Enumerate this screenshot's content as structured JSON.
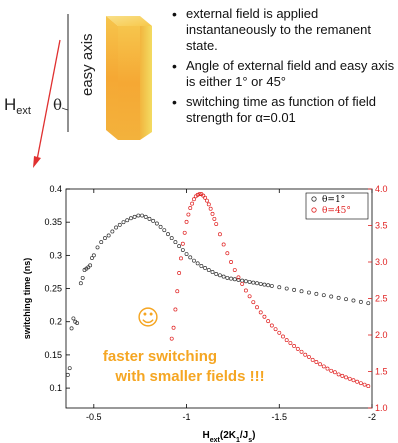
{
  "diagram": {
    "field_label": "H",
    "field_sub": "ext",
    "angle_symbol": "θ",
    "easy_axis_label": "easy axis",
    "colors": {
      "arrow": "#e03030",
      "block_top": "#f7c84a",
      "block_front": "#f5a833",
      "block_side": "#f1d25a"
    }
  },
  "bullets": [
    "external field is applied instantaneously to the remanent state.",
    "Angle of external field and easy axis is either 1° or 45°",
    "switching time as function of field strength for α=0.01"
  ],
  "chart_data": {
    "type": "scatter",
    "xlabel": "H",
    "xlabel_sub": "ext",
    "xlabel_tail": "(2K",
    "xlabel_sub2": "1",
    "xlabel_tail2": "/J",
    "xlabel_sub3": "s",
    "xlabel_end": ")",
    "ylabel": "switching time (ns)",
    "xlim": [
      -0.35,
      -2.0
    ],
    "ylim_left": [
      0.07,
      0.4
    ],
    "ylim_right": [
      1.0,
      4.0
    ],
    "x_ticks": [
      -0.5,
      -1,
      -1.5,
      -2
    ],
    "x_tick_labels": [
      "-0.5",
      "-1",
      "-1.5",
      "-2"
    ],
    "y_ticks_left": [
      0.1,
      0.15,
      0.2,
      0.25,
      0.3,
      0.35,
      0.4
    ],
    "y_tick_labels_left": [
      "0.1",
      "0.15",
      "0.2",
      "0.25",
      "0.3",
      "0.35",
      "0.4"
    ],
    "y_ticks_right": [
      1.0,
      1.5,
      2.0,
      2.5,
      3.0,
      3.5,
      4.0
    ],
    "y_tick_labels_right": [
      "1.0",
      "1.5",
      "2.0",
      "2.5",
      "3.0",
      "3.5",
      "4.0"
    ],
    "legend_position": "top-right",
    "series": [
      {
        "name": "θ=1°",
        "axis": "left",
        "color": "#333333",
        "marker": "open-circle",
        "points": [
          [
            -0.36,
            0.12
          ],
          [
            -0.37,
            0.13
          ],
          [
            -0.38,
            0.19
          ],
          [
            -0.39,
            0.205
          ],
          [
            -0.4,
            0.2
          ],
          [
            -0.41,
            0.198
          ],
          [
            -0.43,
            0.258
          ],
          [
            -0.44,
            0.266
          ],
          [
            -0.45,
            0.278
          ],
          [
            -0.46,
            0.28
          ],
          [
            -0.47,
            0.282
          ],
          [
            -0.48,
            0.285
          ],
          [
            -0.49,
            0.296
          ],
          [
            -0.5,
            0.3
          ],
          [
            -0.52,
            0.312
          ],
          [
            -0.54,
            0.32
          ],
          [
            -0.56,
            0.326
          ],
          [
            -0.58,
            0.33
          ],
          [
            -0.6,
            0.336
          ],
          [
            -0.62,
            0.342
          ],
          [
            -0.64,
            0.346
          ],
          [
            -0.66,
            0.35
          ],
          [
            -0.68,
            0.353
          ],
          [
            -0.7,
            0.356
          ],
          [
            -0.72,
            0.358
          ],
          [
            -0.74,
            0.36
          ],
          [
            -0.76,
            0.36
          ],
          [
            -0.78,
            0.358
          ],
          [
            -0.8,
            0.355
          ],
          [
            -0.82,
            0.352
          ],
          [
            -0.84,
            0.348
          ],
          [
            -0.86,
            0.343
          ],
          [
            -0.88,
            0.338
          ],
          [
            -0.9,
            0.332
          ],
          [
            -0.92,
            0.326
          ],
          [
            -0.94,
            0.32
          ],
          [
            -0.96,
            0.314
          ],
          [
            -0.98,
            0.308
          ],
          [
            -1.0,
            0.302
          ],
          [
            -1.02,
            0.297
          ],
          [
            -1.04,
            0.292
          ],
          [
            -1.06,
            0.288
          ],
          [
            -1.08,
            0.284
          ],
          [
            -1.1,
            0.281
          ],
          [
            -1.12,
            0.278
          ],
          [
            -1.14,
            0.275
          ],
          [
            -1.16,
            0.272
          ],
          [
            -1.18,
            0.27
          ],
          [
            -1.2,
            0.268
          ],
          [
            -1.22,
            0.266
          ],
          [
            -1.24,
            0.265
          ],
          [
            -1.26,
            0.264
          ],
          [
            -1.28,
            0.263
          ],
          [
            -1.3,
            0.262
          ],
          [
            -1.32,
            0.261
          ],
          [
            -1.34,
            0.26
          ],
          [
            -1.36,
            0.259
          ],
          [
            -1.38,
            0.258
          ],
          [
            -1.4,
            0.257
          ],
          [
            -1.42,
            0.256
          ],
          [
            -1.44,
            0.255
          ],
          [
            -1.46,
            0.254
          ],
          [
            -1.5,
            0.252
          ],
          [
            -1.54,
            0.25
          ],
          [
            -1.58,
            0.248
          ],
          [
            -1.62,
            0.246
          ],
          [
            -1.66,
            0.244
          ],
          [
            -1.7,
            0.242
          ],
          [
            -1.74,
            0.24
          ],
          [
            -1.78,
            0.238
          ],
          [
            -1.82,
            0.236
          ],
          [
            -1.86,
            0.234
          ],
          [
            -1.9,
            0.232
          ],
          [
            -1.94,
            0.23
          ],
          [
            -1.98,
            0.228
          ]
        ]
      },
      {
        "name": "θ=45°",
        "axis": "right",
        "color": "#e02020",
        "marker": "open-circle",
        "points": [
          [
            -0.92,
            1.95
          ],
          [
            -0.93,
            2.1
          ],
          [
            -0.94,
            2.35
          ],
          [
            -0.95,
            2.6
          ],
          [
            -0.96,
            2.85
          ],
          [
            -0.97,
            3.05
          ],
          [
            -0.98,
            3.25
          ],
          [
            -0.99,
            3.4
          ],
          [
            -1.0,
            3.55
          ],
          [
            -1.01,
            3.65
          ],
          [
            -1.02,
            3.74
          ],
          [
            -1.03,
            3.8
          ],
          [
            -1.04,
            3.86
          ],
          [
            -1.05,
            3.9
          ],
          [
            -1.06,
            3.92
          ],
          [
            -1.07,
            3.93
          ],
          [
            -1.08,
            3.93
          ],
          [
            -1.09,
            3.91
          ],
          [
            -1.1,
            3.88
          ],
          [
            -1.11,
            3.84
          ],
          [
            -1.12,
            3.79
          ],
          [
            -1.13,
            3.73
          ],
          [
            -1.14,
            3.66
          ],
          [
            -1.15,
            3.59
          ],
          [
            -1.16,
            3.52
          ],
          [
            -1.18,
            3.38
          ],
          [
            -1.2,
            3.24
          ],
          [
            -1.22,
            3.12
          ],
          [
            -1.24,
            3.0
          ],
          [
            -1.26,
            2.89
          ],
          [
            -1.28,
            2.79
          ],
          [
            -1.3,
            2.7
          ],
          [
            -1.32,
            2.61
          ],
          [
            -1.34,
            2.53
          ],
          [
            -1.36,
            2.45
          ],
          [
            -1.38,
            2.38
          ],
          [
            -1.4,
            2.31
          ],
          [
            -1.42,
            2.25
          ],
          [
            -1.44,
            2.19
          ],
          [
            -1.46,
            2.13
          ],
          [
            -1.48,
            2.08
          ],
          [
            -1.5,
            2.03
          ],
          [
            -1.52,
            1.98
          ],
          [
            -1.54,
            1.93
          ],
          [
            -1.56,
            1.89
          ],
          [
            -1.58,
            1.85
          ],
          [
            -1.6,
            1.81
          ],
          [
            -1.62,
            1.77
          ],
          [
            -1.64,
            1.73
          ],
          [
            -1.66,
            1.7
          ],
          [
            -1.68,
            1.66
          ],
          [
            -1.7,
            1.63
          ],
          [
            -1.72,
            1.6
          ],
          [
            -1.74,
            1.57
          ],
          [
            -1.76,
            1.54
          ],
          [
            -1.78,
            1.51
          ],
          [
            -1.8,
            1.49
          ],
          [
            -1.82,
            1.46
          ],
          [
            -1.84,
            1.44
          ],
          [
            -1.86,
            1.42
          ],
          [
            -1.88,
            1.4
          ],
          [
            -1.9,
            1.38
          ],
          [
            -1.92,
            1.36
          ],
          [
            -1.94,
            1.34
          ],
          [
            -1.96,
            1.32
          ],
          [
            -1.98,
            1.3
          ]
        ]
      }
    ],
    "annotation": {
      "smiley": "☺",
      "line1": "faster switching",
      "line2": "with smaller fields !!!",
      "color": "#f5a623"
    }
  }
}
